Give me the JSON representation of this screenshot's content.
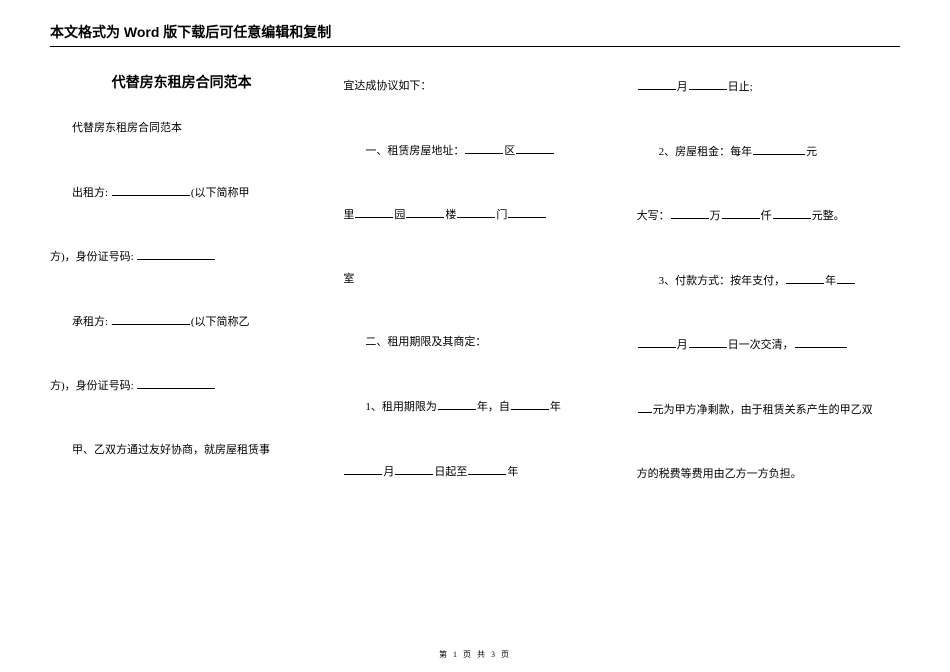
{
  "header": "本文格式为 Word 版下载后可任意编辑和复制",
  "title": "代替房东租房合同范本",
  "col1": {
    "p1": "代替房东租房合同范本",
    "p2_prefix": "出租方: ",
    "p2_suffix": "(以下简称甲",
    "p3_prefix": "方)，身份证号码: ",
    "p4_prefix": "承租方: ",
    "p4_suffix": "(以下简称乙",
    "p5_prefix": "方)，身份证号码: ",
    "p6": "甲、乙双方通过友好协商，就房屋租赁事"
  },
  "col2": {
    "p1": "宜达成协议如下：",
    "p2_prefix": "一、租赁房屋地址：",
    "p2_mid": "区",
    "p3_li": "里",
    "p3_yuan": "园",
    "p3_lou": "楼",
    "p3_men": "门",
    "p4": "室",
    "p5": "二、租用期限及其商定：",
    "p6_prefix": "1、租用期限为",
    "p6_year": "年，自",
    "p6_suffix": "年",
    "p7_yue": "月",
    "p7_ri": "日起至",
    "p7_suffix": "年"
  },
  "col3": {
    "p1_yue": "月",
    "p1_suffix": "日止;",
    "p2_prefix": "2、房屋租金：每年",
    "p2_suffix": "元",
    "p3_prefix": "大写：",
    "p3_wan": "万",
    "p3_qian": "仟",
    "p3_suffix": "元整。",
    "p4_prefix": "3、付款方式：按年支付，",
    "p4_year": "年",
    "p5_yue": "月",
    "p5_ri": "日一次交清，",
    "p6": "元为甲方净剩款，由于租赁关系产生的甲乙双",
    "p7": "方的税费等费用由乙方一方负担。"
  },
  "footer": "第 1 页 共 3 页",
  "blank_widths": {
    "short": "38px",
    "med": "52px",
    "long": "78px"
  }
}
